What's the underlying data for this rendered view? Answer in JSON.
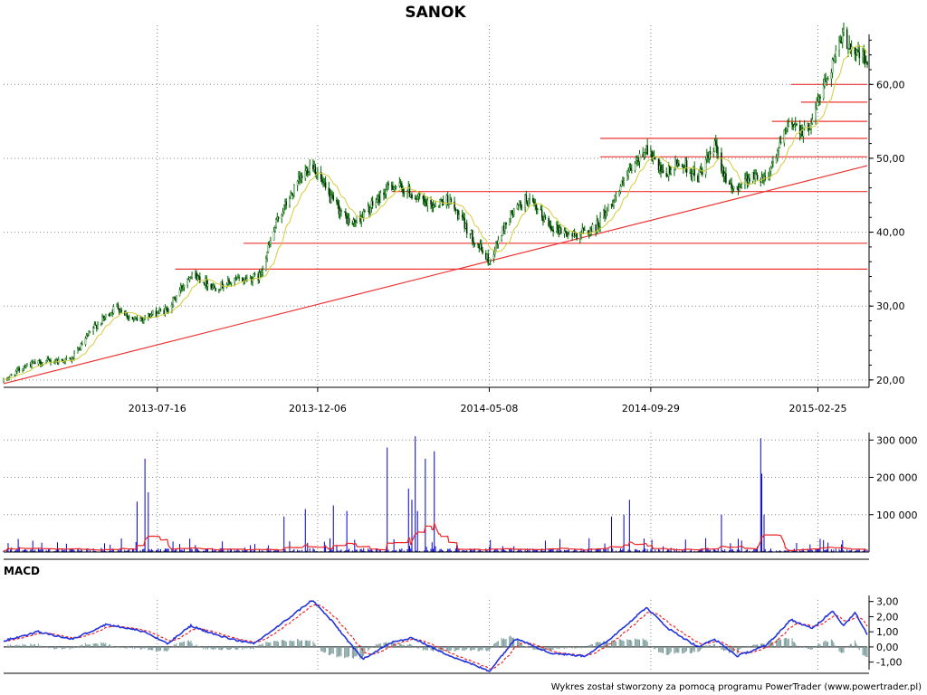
{
  "chart_data": [
    {
      "type": "candlestick",
      "title": "SANOK",
      "x_ticks": [
        "2013-07-16",
        "2013-12-06",
        "2014-05-08",
        "2014-09-29",
        "2015-02-25"
      ],
      "y_ticks": [
        "20,00",
        "30,00",
        "40,00",
        "50,00",
        "60,00"
      ],
      "ylim": [
        19,
        68
      ],
      "date_range": [
        "2013-03-01",
        "2015-04-10"
      ],
      "close_anchors": [
        [
          "2013-03-01",
          19.8
        ],
        [
          "2013-03-20",
          22
        ],
        [
          "2013-04-10",
          22.5
        ],
        [
          "2013-05-01",
          22.8
        ],
        [
          "2013-05-20",
          27
        ],
        [
          "2013-06-10",
          30
        ],
        [
          "2013-06-25",
          28
        ],
        [
          "2013-07-10",
          28.8
        ],
        [
          "2013-07-25",
          29.5
        ],
        [
          "2013-08-15",
          34.5
        ],
        [
          "2013-09-05",
          32.5
        ],
        [
          "2013-09-25",
          33.5
        ],
        [
          "2013-10-15",
          34
        ],
        [
          "2013-11-01",
          42
        ],
        [
          "2013-11-20",
          47
        ],
        [
          "2013-12-01",
          49.5
        ],
        [
          "2013-12-15",
          45
        ],
        [
          "2014-01-05",
          41
        ],
        [
          "2014-01-20",
          43
        ],
        [
          "2014-02-10",
          46.5
        ],
        [
          "2014-02-25",
          45.5
        ],
        [
          "2014-03-15",
          43.5
        ],
        [
          "2014-04-01",
          44.5
        ],
        [
          "2014-04-20",
          40
        ],
        [
          "2014-05-08",
          36
        ],
        [
          "2014-05-25",
          42
        ],
        [
          "2014-06-10",
          44.5
        ],
        [
          "2014-07-01",
          41
        ],
        [
          "2014-07-20",
          39.5
        ],
        [
          "2014-08-10",
          40.5
        ],
        [
          "2014-08-25",
          44
        ],
        [
          "2014-09-10",
          48
        ],
        [
          "2014-09-25",
          51.5
        ],
        [
          "2014-10-10",
          47.5
        ],
        [
          "2014-10-25",
          49.5
        ],
        [
          "2014-11-10",
          47.5
        ],
        [
          "2014-11-25",
          51.5
        ],
        [
          "2014-12-10",
          45.5
        ],
        [
          "2014-12-25",
          47.5
        ],
        [
          "2015-01-10",
          47.5
        ],
        [
          "2015-01-20",
          51
        ],
        [
          "2015-02-01",
          55
        ],
        [
          "2015-02-15",
          53.5
        ],
        [
          "2015-02-28",
          59
        ],
        [
          "2015-03-10",
          63
        ],
        [
          "2015-03-20",
          66.5
        ],
        [
          "2015-03-30",
          64.5
        ],
        [
          "2015-04-10",
          63
        ]
      ],
      "moving_average_color": "#d4cc3c",
      "candle_color": "#006400",
      "horizontal_levels": [
        {
          "y": 35,
          "from": "2013-08-01"
        },
        {
          "y": 38.5,
          "from": "2013-10-01"
        },
        {
          "y": 45.5,
          "from": "2014-02-10"
        },
        {
          "y": 50.2,
          "from": "2014-08-15"
        },
        {
          "y": 52.7,
          "from": "2014-08-15"
        },
        {
          "y": 55,
          "from": "2015-01-15"
        },
        {
          "y": 57.6,
          "from": "2015-02-10"
        },
        {
          "y": 60,
          "from": "2015-02-01"
        }
      ],
      "trendline": {
        "from": [
          "2013-03-01",
          19.5
        ],
        "to": [
          "2015-04-10",
          49
        ]
      },
      "level_color": "#ee3333"
    },
    {
      "type": "bar",
      "name": "volume",
      "y_ticks": [
        "100 000",
        "200 000",
        "300 000"
      ],
      "ylim": [
        0,
        320000
      ],
      "spikes": [
        [
          "2013-05-25",
          130000
        ],
        [
          "2013-06-15",
          65000
        ],
        [
          "2013-07-05",
          250000
        ],
        [
          "2013-07-08",
          160000
        ],
        [
          "2013-06-28",
          135000
        ],
        [
          "2013-11-03",
          100000
        ],
        [
          "2013-11-06",
          95000
        ],
        [
          "2013-11-25",
          115000
        ],
        [
          "2013-12-20",
          125000
        ],
        [
          "2014-01-01",
          110000
        ],
        [
          "2014-01-25",
          200000
        ],
        [
          "2014-02-06",
          280000
        ],
        [
          "2014-02-25",
          170000
        ],
        [
          "2014-03-03",
          310000
        ],
        [
          "2014-03-12",
          250000
        ],
        [
          "2014-03-20",
          270000
        ],
        [
          "2014-02-28",
          140000
        ],
        [
          "2014-03-05",
          110000
        ],
        [
          "2014-09-10",
          140000
        ],
        [
          "2014-09-05",
          100000
        ],
        [
          "2014-08-25",
          95000
        ],
        [
          "2014-11-15",
          95000
        ],
        [
          "2014-12-01",
          100000
        ],
        [
          "2015-01-05",
          305000
        ],
        [
          "2015-01-06",
          210000
        ],
        [
          "2015-01-08",
          100000
        ]
      ],
      "bar_color": "#0000cc",
      "average_color": "#ee2222"
    },
    {
      "type": "line",
      "title": "MACD",
      "y_ticks": [
        "-1,00",
        "0,00",
        "1,00",
        "2,00",
        "3,00"
      ],
      "ylim": [
        -1.5,
        3.4
      ],
      "macd_anchors": [
        [
          "2013-03-01",
          0.4
        ],
        [
          "2013-04-01",
          1
        ],
        [
          "2013-05-01",
          0.5
        ],
        [
          "2013-06-01",
          1.5
        ],
        [
          "2013-07-05",
          1
        ],
        [
          "2013-07-25",
          0.2
        ],
        [
          "2013-08-15",
          1.4
        ],
        [
          "2013-09-10",
          0.7
        ],
        [
          "2013-10-10",
          0.2
        ],
        [
          "2013-11-05",
          1.6
        ],
        [
          "2013-12-01",
          3.1
        ],
        [
          "2013-12-20",
          1.6
        ],
        [
          "2014-01-15",
          -0.8
        ],
        [
          "2014-02-10",
          0.3
        ],
        [
          "2014-03-01",
          0.6
        ],
        [
          "2014-03-25",
          -0.3
        ],
        [
          "2014-05-08",
          -1.6
        ],
        [
          "2014-06-01",
          0.6
        ],
        [
          "2014-07-01",
          -0.4
        ],
        [
          "2014-08-01",
          -0.6
        ],
        [
          "2014-08-20",
          0.3
        ],
        [
          "2014-09-25",
          2.6
        ],
        [
          "2014-10-15",
          1.2
        ],
        [
          "2014-11-10",
          0
        ],
        [
          "2014-11-25",
          0.5
        ],
        [
          "2014-12-15",
          -0.6
        ],
        [
          "2015-01-10",
          0.1
        ],
        [
          "2015-02-01",
          1.8
        ],
        [
          "2015-02-20",
          1.2
        ],
        [
          "2015-03-10",
          2.4
        ],
        [
          "2015-03-20",
          1.4
        ],
        [
          "2015-03-30",
          2.3
        ],
        [
          "2015-04-10",
          0.8
        ]
      ],
      "macd_color": "#2233dd",
      "signal_color": "#ee2222",
      "histogram_color": "#7a9a9a"
    }
  ],
  "footer": "Wykres został stworzony za pomocą programu PowerTrader (www.powertrader.pl)"
}
